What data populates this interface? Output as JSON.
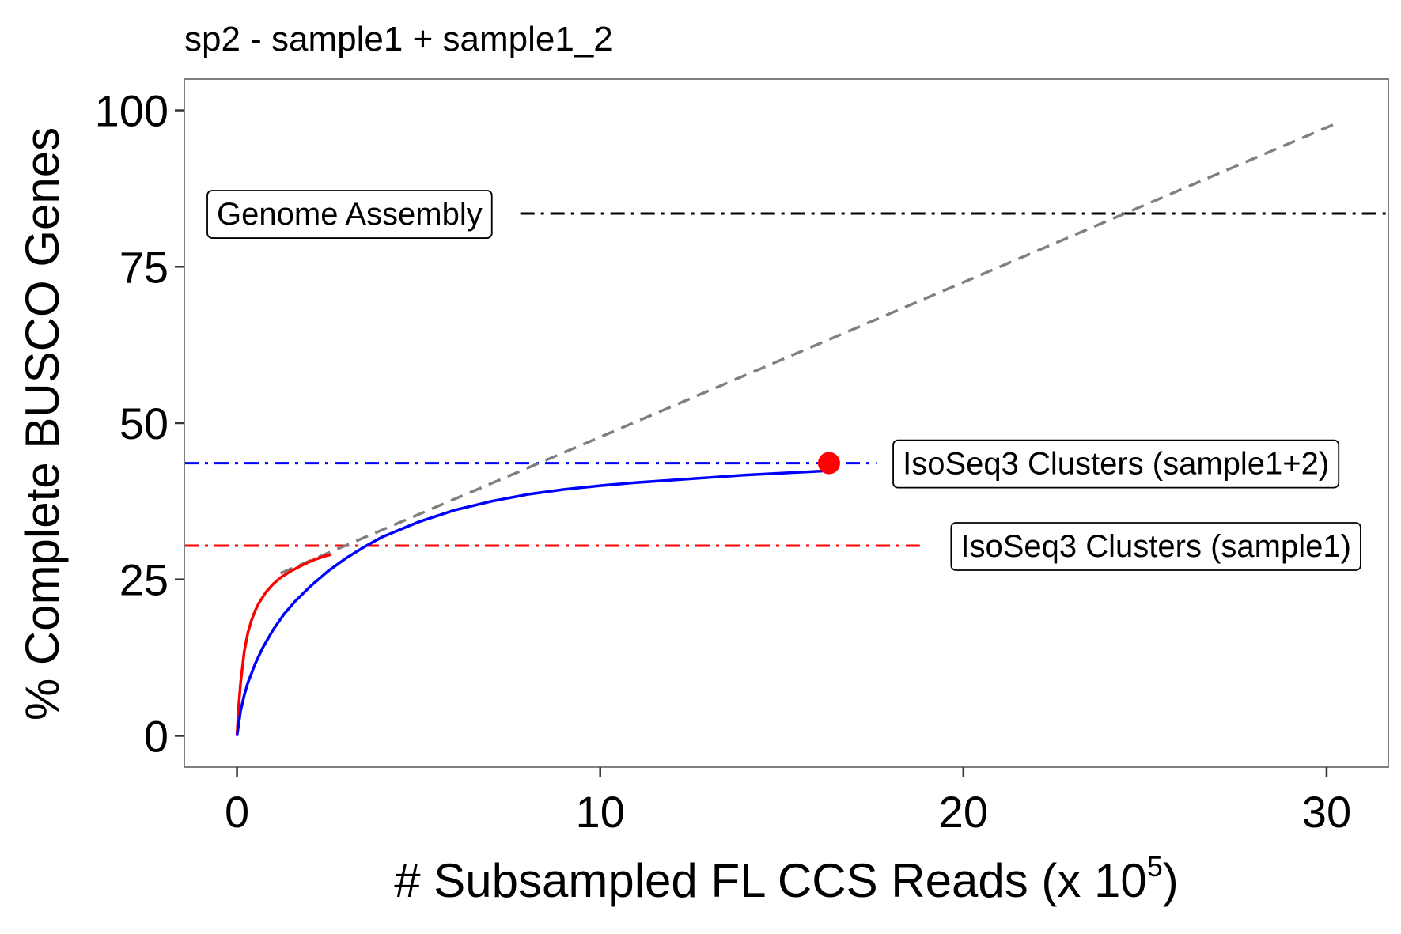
{
  "chart_data": {
    "type": "line",
    "title": "sp2 - sample1 +  sample1_2",
    "xlabel": "# Subsampled FL CCS Reads (x 10",
    "xlabel_exponent": "5",
    "xlabel_close": ")",
    "ylabel": "% Complete BUSCO Genes",
    "xlim": [
      -1.45,
      31.7
    ],
    "ylim": [
      -5,
      105
    ],
    "x_ticks": [
      0,
      10,
      20,
      30
    ],
    "x_tick_labels": [
      "0",
      "10",
      "20",
      "30"
    ],
    "y_ticks": [
      0,
      25,
      50,
      75,
      100
    ],
    "y_tick_labels": [
      "0",
      "25",
      "50",
      "75",
      "100"
    ],
    "grid": false,
    "series": [
      {
        "color": "#ff0000",
        "x": [
          0,
          0.05,
          0.1,
          0.15,
          0.2,
          0.3,
          0.4,
          0.5,
          0.6,
          0.8,
          1.0,
          1.2,
          1.5,
          1.8,
          2.1,
          2.4,
          2.6
        ],
        "y": [
          0,
          5,
          8.5,
          11,
          13.5,
          16.5,
          18.5,
          20,
          21.2,
          23,
          24.3,
          25.3,
          26.4,
          27.3,
          28.1,
          28.7,
          29
        ]
      },
      {
        "color": "#0000ff",
        "x": [
          0,
          0.1,
          0.2,
          0.3,
          0.5,
          0.7,
          1.0,
          1.3,
          1.6,
          2.0,
          2.5,
          3.0,
          3.5,
          4.0,
          5.0,
          6.0,
          7.0,
          8.0,
          9.0,
          10.0,
          11.0,
          12.0,
          13.0,
          14.0,
          15.0,
          16.0,
          16.3
        ],
        "y": [
          0,
          4,
          6.5,
          8.5,
          11.5,
          14,
          17,
          19.5,
          21.5,
          23.8,
          26.3,
          28.4,
          30.2,
          31.8,
          34.2,
          36.1,
          37.5,
          38.6,
          39.4,
          40,
          40.5,
          40.9,
          41.3,
          41.7,
          42,
          42.3,
          42.4
        ]
      }
    ],
    "trend_line": {
      "color": "#808080",
      "x": [
        1.2,
        30.3
      ],
      "y": [
        26,
        98
      ]
    },
    "reference_lines": [
      {
        "label": "Genome Assembly",
        "y": 83.5,
        "color": "#000000",
        "x_from": 7.8,
        "x_to": 31.7,
        "label_x": 3.1
      },
      {
        "label": "IsoSeq3 Clusters (sample1+2)",
        "y": 43.6,
        "color": "#0000ff",
        "x_from": -1.45,
        "x_to": 17.6,
        "label_x": 24.2
      },
      {
        "label": "IsoSeq3 Clusters (sample1)",
        "y": 30.4,
        "color": "#ff0000",
        "x_from": -1.45,
        "x_to": 18.8,
        "label_x": 25.3
      }
    ],
    "highlight_point": {
      "x": 16.3,
      "y": 43.6,
      "color": "#ff0000"
    }
  }
}
